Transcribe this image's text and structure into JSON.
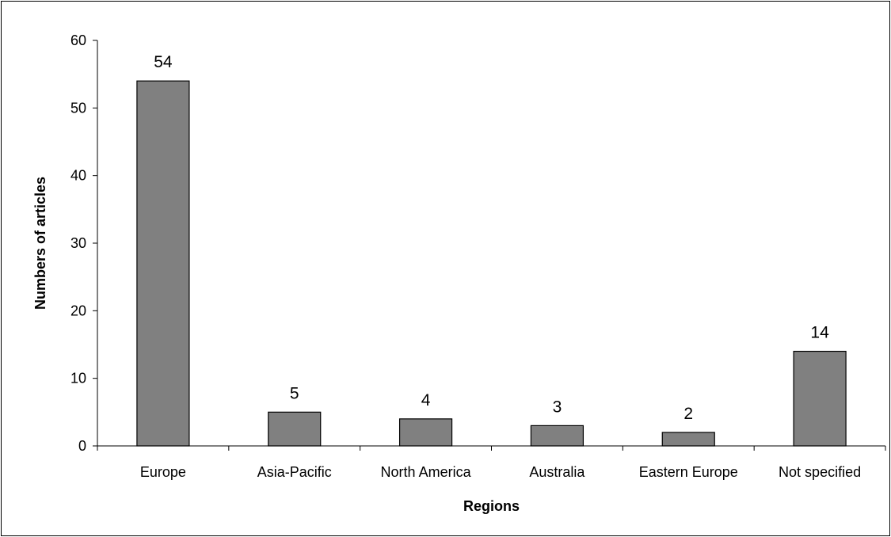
{
  "chart_data": {
    "type": "bar",
    "title": "",
    "xlabel": "Regions",
    "ylabel": "Numbers of articles",
    "categories": [
      "Europe",
      "Asia-Pacific",
      "North America",
      "Australia",
      "Eastern Europe",
      "Not specified"
    ],
    "values": [
      54,
      5,
      4,
      3,
      2,
      14
    ],
    "ylim": [
      0,
      60
    ],
    "yticks": [
      0,
      10,
      20,
      30,
      40,
      50,
      60
    ],
    "grid": false,
    "legend": "none",
    "colors": {
      "bar_fill": "#808080",
      "bar_stroke": "#000000",
      "axis": "#000000",
      "background": "#ffffff"
    }
  }
}
